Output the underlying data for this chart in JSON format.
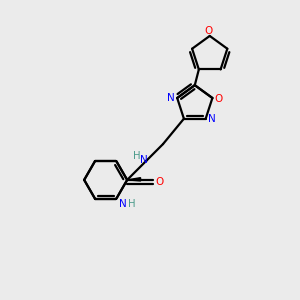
{
  "background_color": "#ebebeb",
  "bond_color": "#000000",
  "N_color": "#0000ff",
  "O_color": "#ff0000",
  "H_color": "#4a9a8a",
  "lw": 1.6,
  "figsize": [
    3.0,
    3.0
  ],
  "dpi": 100,
  "xlim": [
    0,
    10
  ],
  "ylim": [
    0,
    10
  ]
}
